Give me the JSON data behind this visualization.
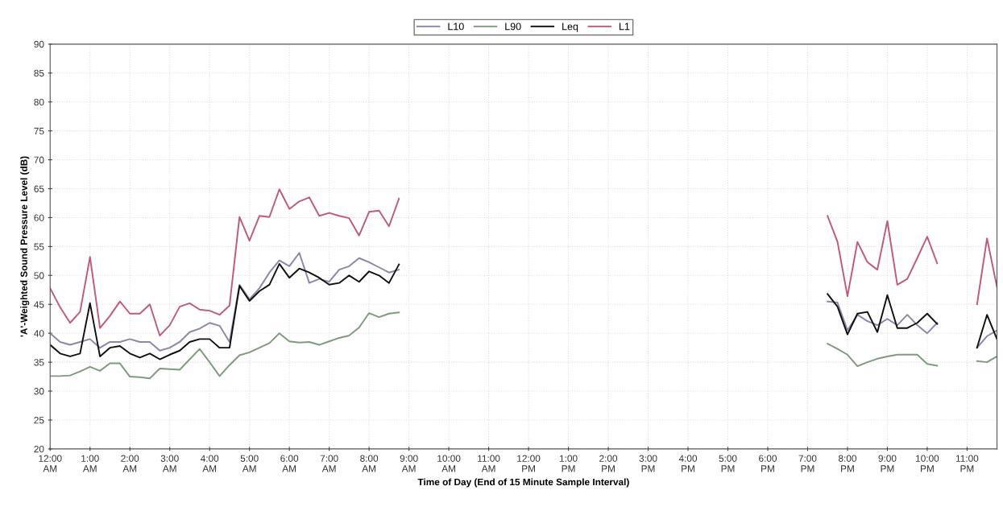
{
  "chart_data": {
    "type": "line",
    "xlabel": "Time of Day (End of 15 Minute Sample Interval)",
    "ylabel": "'A'-Weighted Sound Pressure Level (dB)",
    "x": [
      0,
      0.25,
      0.5,
      0.75,
      1,
      1.25,
      1.5,
      1.75,
      2,
      2.25,
      2.5,
      2.75,
      3,
      3.25,
      3.5,
      3.75,
      4,
      4.25,
      4.5,
      4.75,
      5,
      5.25,
      5.5,
      5.75,
      6,
      6.25,
      6.5,
      6.75,
      7,
      7.25,
      7.5,
      7.75,
      8,
      8.25,
      8.5,
      8.75,
      9,
      19.5,
      19.75,
      20,
      20.25,
      20.5,
      20.75,
      21,
      21.25,
      21.5,
      21.75,
      22,
      22.25,
      23,
      23.25,
      23.5,
      23.75
    ],
    "series": [
      {
        "name": "L10",
        "color": "#8a88a8",
        "values": [
          40,
          38.5,
          38,
          38.5,
          39,
          37.5,
          38.5,
          38.5,
          39,
          38.5,
          38.5,
          37,
          37.5,
          38.5,
          40.2,
          40.8,
          41.8,
          41.3,
          38.5,
          48.4,
          45.9,
          47.8,
          50.5,
          52.6,
          51.6,
          53.9,
          48.7,
          49.4,
          48.9,
          51,
          51.6,
          53,
          52.3,
          51.4,
          50.5,
          51,
          null,
          45.5,
          45.3,
          40.5,
          43.2,
          42.1,
          41.4,
          42.5,
          41.4,
          43.2,
          41.4,
          40,
          41.8,
          null,
          37.5,
          39.5,
          40.5
        ]
      },
      {
        "name": "L90",
        "color": "#7c9c7c",
        "values": [
          32.6,
          32.6,
          32.7,
          33.4,
          34.2,
          33.5,
          34.8,
          34.8,
          32.5,
          32.4,
          32.2,
          33.9,
          33.8,
          33.7,
          35.5,
          37.3,
          35,
          32.6,
          34.5,
          36.2,
          36.7,
          37.5,
          38.3,
          40,
          38.6,
          38.4,
          38.5,
          38,
          38.6,
          39.2,
          39.6,
          41,
          43.5,
          42.8,
          43.4,
          43.6,
          null,
          38.2,
          37.3,
          36.3,
          34.3,
          35,
          35.6,
          36,
          36.3,
          36.3,
          36.3,
          34.7,
          34.4,
          null,
          35.2,
          35,
          36
        ]
      },
      {
        "name": "Leq",
        "color": "#111111",
        "values": [
          38,
          36.5,
          36,
          36.5,
          45.2,
          36,
          37.5,
          37.8,
          36.5,
          35.8,
          36.5,
          35.5,
          36.3,
          37,
          38.5,
          39,
          39,
          37.5,
          37.5,
          48.2,
          45.6,
          47.3,
          48.4,
          52,
          49.6,
          51.2,
          50.5,
          49.6,
          48.4,
          48.7,
          50,
          48.9,
          50.7,
          50,
          48.7,
          51.9,
          null,
          46.8,
          44.6,
          39.8,
          43.4,
          43.7,
          40.2,
          46.6,
          40.9,
          40.9,
          41.8,
          43.4,
          41.6,
          null,
          37.5,
          43.2,
          39
        ]
      },
      {
        "name": "L1",
        "color": "#c05a78",
        "values": [
          47.8,
          44.5,
          41.8,
          43.7,
          53.2,
          40.9,
          43,
          45.5,
          43.4,
          43.4,
          45,
          39.6,
          41.4,
          44.6,
          45.2,
          44.1,
          43.9,
          43.2,
          44.8,
          60.1,
          56,
          60.3,
          60.1,
          64.9,
          61.5,
          62.8,
          63.5,
          60.3,
          60.8,
          60.3,
          59.9,
          56.9,
          61,
          61.2,
          58.5,
          63.3,
          null,
          60.3,
          55.8,
          46.4,
          55.8,
          52.3,
          51,
          59.4,
          48.4,
          49.4,
          53,
          56.7,
          52.1,
          null,
          45,
          56.4,
          48
        ]
      }
    ],
    "xlim": [
      0,
      23.75
    ],
    "xticks": [
      {
        "value": 0,
        "label": "12:00\nAM"
      },
      {
        "value": 1,
        "label": "1:00\nAM"
      },
      {
        "value": 2,
        "label": "2:00\nAM"
      },
      {
        "value": 3,
        "label": "3:00\nAM"
      },
      {
        "value": 4,
        "label": "4:00\nAM"
      },
      {
        "value": 5,
        "label": "5:00\nAM"
      },
      {
        "value": 6,
        "label": "6:00\nAM"
      },
      {
        "value": 7,
        "label": "7:00\nAM"
      },
      {
        "value": 8,
        "label": "8:00\nAM"
      },
      {
        "value": 9,
        "label": "9:00\nAM"
      },
      {
        "value": 10,
        "label": "10:00\nAM"
      },
      {
        "value": 11,
        "label": "11:00\nAM"
      },
      {
        "value": 12,
        "label": "12:00\nPM"
      },
      {
        "value": 13,
        "label": "1:00\nPM"
      },
      {
        "value": 14,
        "label": "2:00\nPM"
      },
      {
        "value": 15,
        "label": "3:00\nPM"
      },
      {
        "value": 16,
        "label": "4:00\nPM"
      },
      {
        "value": 17,
        "label": "5:00\nPM"
      },
      {
        "value": 18,
        "label": "6:00\nPM"
      },
      {
        "value": 19,
        "label": "7:00\nPM"
      },
      {
        "value": 20,
        "label": "8:00\nPM"
      },
      {
        "value": 21,
        "label": "9:00\nPM"
      },
      {
        "value": 22,
        "label": "10:00\nPM"
      },
      {
        "value": 23,
        "label": "11:00\nPM"
      }
    ],
    "ylim": [
      20,
      90
    ],
    "yticks": [
      20,
      25,
      30,
      35,
      40,
      45,
      50,
      55,
      60,
      65,
      70,
      75,
      80,
      85,
      90
    ],
    "grid": true,
    "legend": "top",
    "marker": "none",
    "line_style": "solid"
  }
}
